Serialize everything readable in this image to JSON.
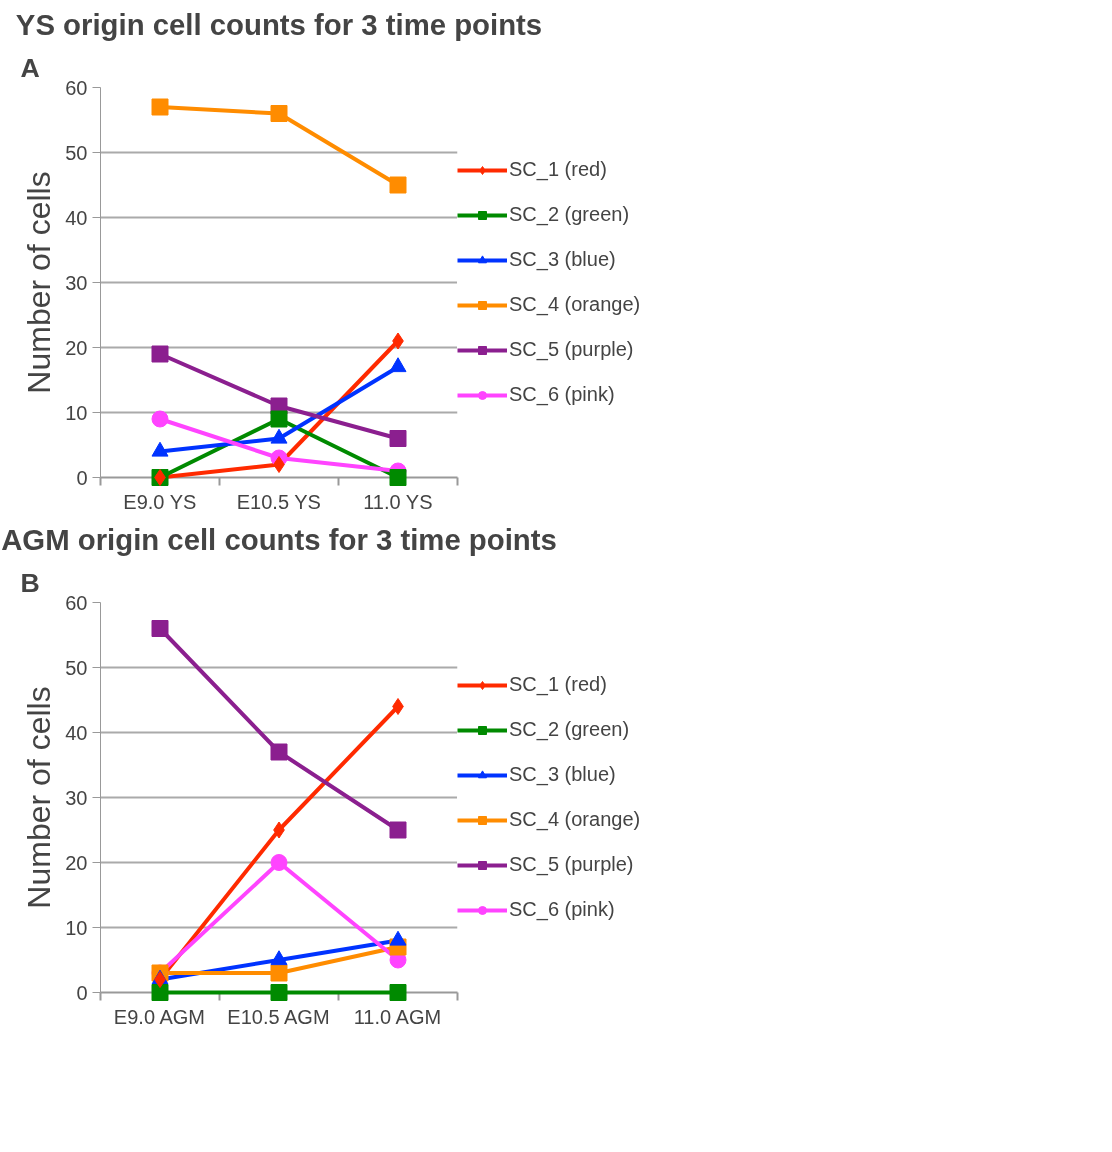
{
  "chart_data": [
    {
      "type": "line",
      "title": "YS origin cell counts for 3 time points",
      "ylabel": "Number of cells",
      "annotations": [
        "A"
      ],
      "categories": [
        "E9.0 YS",
        "E10.5 YS",
        "11.0 YS"
      ],
      "ylim": [
        0,
        60
      ],
      "yticks": [
        0,
        10,
        20,
        30,
        40,
        50,
        60
      ],
      "grid": "y",
      "legend": "right",
      "series": [
        {
          "name": "SC_1 (red)",
          "color": "#ff2a00",
          "marker": "diamond",
          "values": [
            0,
            2,
            21
          ]
        },
        {
          "name": "SC_2 (green)",
          "color": "#008a00",
          "marker": "square",
          "values": [
            0,
            9,
            0
          ]
        },
        {
          "name": "SC_3 (blue)",
          "color": "#0033ff",
          "marker": "triangle",
          "values": [
            4,
            6,
            17
          ]
        },
        {
          "name": "SC_4 (orange)",
          "color": "#ff8c00",
          "marker": "square",
          "values": [
            57,
            56,
            45
          ]
        },
        {
          "name": "SC_5 (purple)",
          "color": "#8b1f8f",
          "marker": "square",
          "values": [
            19,
            11,
            6
          ]
        },
        {
          "name": "SC_6 (pink)",
          "color": "#ff44ff",
          "marker": "circle",
          "values": [
            9,
            3,
            1
          ]
        }
      ]
    },
    {
      "type": "line",
      "title": "AGM origin cell counts for 3 time points",
      "ylabel": "Number of cells",
      "annotations": [
        "B"
      ],
      "categories": [
        "E9.0 AGM",
        "E10.5 AGM",
        "11.0 AGM"
      ],
      "ylim": [
        0,
        60
      ],
      "yticks": [
        0,
        10,
        20,
        30,
        40,
        50,
        60
      ],
      "grid": "y",
      "legend": "right",
      "series": [
        {
          "name": "SC_1 (red)",
          "color": "#ff2a00",
          "marker": "diamond",
          "values": [
            2,
            25,
            44
          ]
        },
        {
          "name": "SC_2 (green)",
          "color": "#008a00",
          "marker": "square",
          "values": [
            0,
            0,
            0
          ]
        },
        {
          "name": "SC_3 (blue)",
          "color": "#0033ff",
          "marker": "triangle",
          "values": [
            2,
            5,
            8
          ]
        },
        {
          "name": "SC_4 (orange)",
          "color": "#ff8c00",
          "marker": "square",
          "values": [
            3,
            3,
            7
          ]
        },
        {
          "name": "SC_5 (purple)",
          "color": "#8b1f8f",
          "marker": "square",
          "values": [
            56,
            37,
            25
          ]
        },
        {
          "name": "SC_6 (pink)",
          "color": "#ff44ff",
          "marker": "circle",
          "values": [
            3,
            20,
            5
          ]
        }
      ]
    }
  ]
}
